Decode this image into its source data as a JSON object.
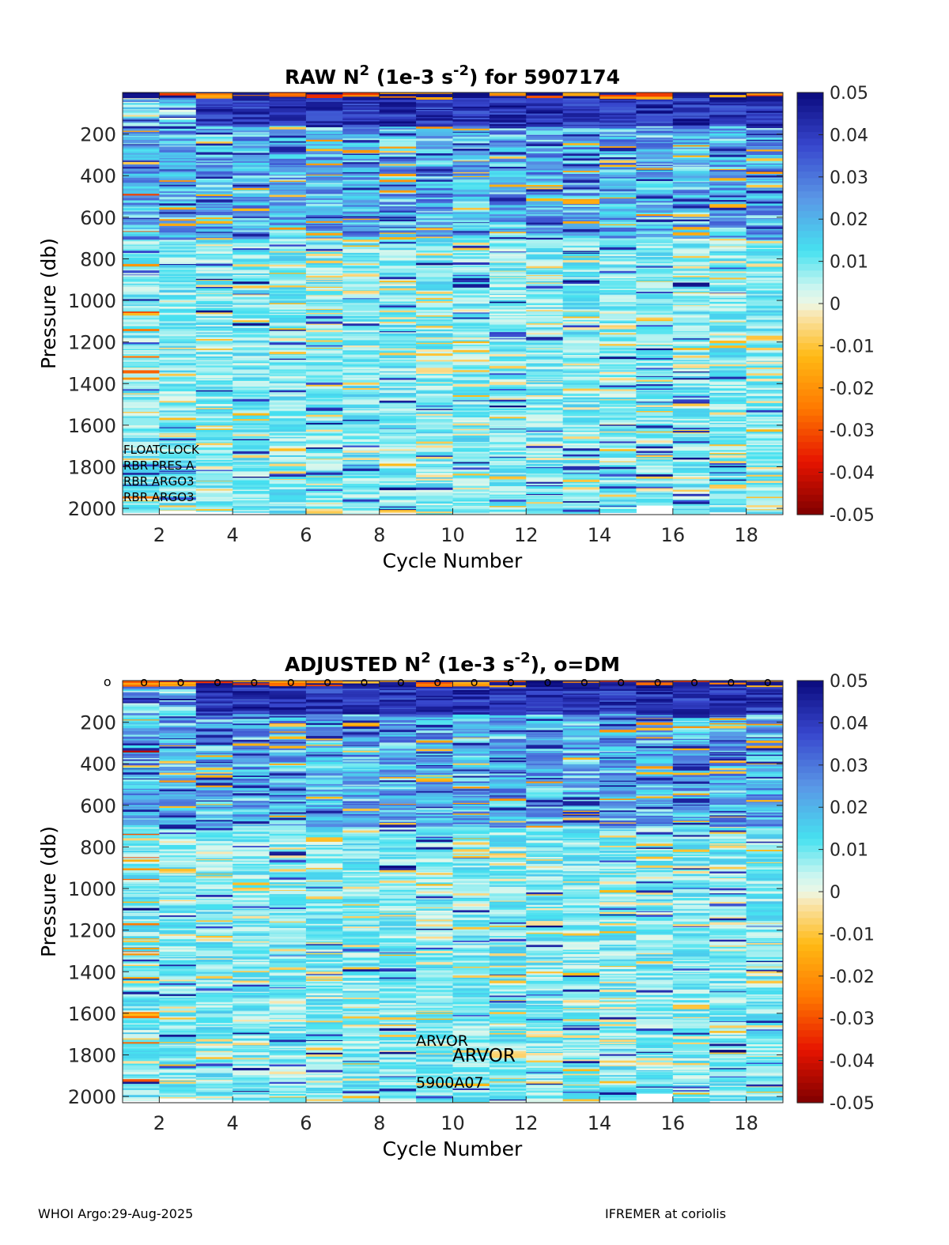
{
  "chart_data": [
    {
      "type": "heatmap",
      "title": "RAW N2 (1e-3 s-2) for 5907174",
      "title_parts": {
        "prefix": "RAW N",
        "sup1": "2",
        "mid": " (1e-3 s",
        "sup2": "-2",
        "suffix": ") for 5907174"
      },
      "xlabel": "Cycle Number",
      "ylabel": "Pressure (db)",
      "x_ticks": [
        "2",
        "4",
        "6",
        "8",
        "10",
        "12",
        "14",
        "16",
        "18"
      ],
      "y_ticks": [
        "200",
        "400",
        "600",
        "800",
        "1000",
        "1200",
        "1400",
        "1600",
        "1800",
        "2000"
      ],
      "xlim": [
        1,
        19
      ],
      "ylim": [
        0,
        2030
      ],
      "y_reversed": true,
      "colormap": "jet-diverging",
      "clim": [
        -0.05,
        0.05
      ],
      "colorbar_ticks": [
        "0.05",
        "0.04",
        "0.03",
        "0.02",
        "0.01",
        "0",
        "-0.01",
        "-0.02",
        "-0.03",
        "-0.04",
        "-0.05"
      ],
      "cycles": [
        1,
        2,
        3,
        4,
        5,
        6,
        7,
        8,
        9,
        10,
        11,
        12,
        13,
        14,
        15,
        16,
        17,
        18
      ],
      "max_pressure": [
        2020,
        2010,
        2015,
        2020,
        2030,
        2030,
        2025,
        2020,
        2030,
        2030,
        2025,
        2030,
        2025,
        2020,
        1985,
        2030,
        2020,
        2025
      ],
      "annotations": [
        "FLOATCLOCK",
        "RBR PRES A",
        "RBR ARGO3",
        "RBR ARGO3"
      ]
    },
    {
      "type": "heatmap",
      "title": "ADJUSTED N2 (1e-3 s-2), o=DM",
      "title_parts": {
        "prefix": "ADJUSTED N",
        "sup1": "2",
        "mid": " (1e-3 s",
        "sup2": "-2",
        "suffix": "), o=DM"
      },
      "xlabel": "Cycle Number",
      "ylabel": "Pressure (db)",
      "x_ticks": [
        "2",
        "4",
        "6",
        "8",
        "10",
        "12",
        "14",
        "16",
        "18"
      ],
      "y_ticks": [
        "200",
        "400",
        "600",
        "800",
        "1000",
        "1200",
        "1400",
        "1600",
        "1800",
        "2000"
      ],
      "xlim": [
        1,
        19
      ],
      "ylim": [
        0,
        2030
      ],
      "y_reversed": true,
      "colormap": "jet-diverging",
      "clim": [
        -0.05,
        0.05
      ],
      "colorbar_ticks": [
        "0.05",
        "0.04",
        "0.03",
        "0.02",
        "0.01",
        "0",
        "-0.01",
        "-0.02",
        "-0.03",
        "-0.04",
        "-0.05"
      ],
      "cycles": [
        1,
        2,
        3,
        4,
        5,
        6,
        7,
        8,
        9,
        10,
        11,
        12,
        13,
        14,
        15,
        16,
        17,
        18
      ],
      "max_pressure": [
        2020,
        2010,
        2015,
        2020,
        2030,
        2030,
        2025,
        2020,
        2030,
        2030,
        2025,
        2030,
        2025,
        2020,
        1985,
        2030,
        2020,
        2025
      ],
      "dm_marker": "o",
      "dm_cycles": [
        1,
        2,
        3,
        4,
        5,
        6,
        7,
        8,
        9,
        10,
        11,
        12,
        13,
        14,
        15,
        16,
        17,
        18,
        19
      ],
      "annotations": [
        "ARVOR",
        "ARVOR",
        "5900A07"
      ]
    }
  ],
  "footer": {
    "left": "WHOI Argo:29-Aug-2025",
    "right": "IFREMER at coriolis"
  }
}
